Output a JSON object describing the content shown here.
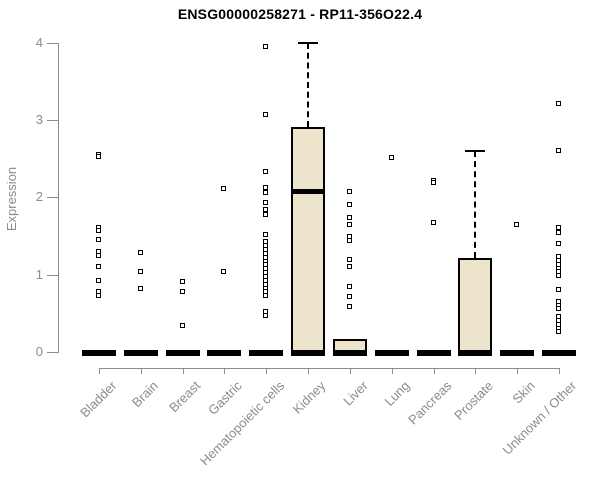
{
  "chart_data": {
    "type": "boxplot",
    "title": "ENSG00000258271 - RP11-356O22.4",
    "ylabel": "Expression",
    "xlabel": "",
    "ylim": [
      0,
      4
    ],
    "yticks": [
      0,
      1,
      2,
      3,
      4
    ],
    "grid": "off",
    "legend": "none",
    "box_fill_color": "#ece5cb",
    "box_border_color": "#000000",
    "axis_color": "#8c8c8c",
    "outlier_marker": "open-square",
    "categories": [
      "Bladder",
      "Brain",
      "Breast",
      "Gastric",
      "Hematopoietic cells",
      "Kidney",
      "Liver",
      "Lung",
      "Pancreas",
      "Prostate",
      "Skin",
      "Unknown / Other"
    ],
    "groups": [
      {
        "name": "Bladder",
        "box": {
          "q1": 0,
          "median": 0,
          "q3": 0,
          "whisker_low": 0,
          "whisker_high": 0
        },
        "points": [
          2.55,
          2.52,
          1.6,
          1.56,
          1.45,
          1.3,
          1.24,
          1.1,
          0.92,
          0.78,
          0.72
        ]
      },
      {
        "name": "Brain",
        "box": {
          "q1": 0,
          "median": 0,
          "q3": 0,
          "whisker_low": 0,
          "whisker_high": 0
        },
        "points": [
          1.28,
          1.04,
          0.81
        ]
      },
      {
        "name": "Breast",
        "box": {
          "q1": 0,
          "median": 0,
          "q3": 0,
          "whisker_low": 0,
          "whisker_high": 0
        },
        "points": [
          0.9,
          0.78,
          0.33
        ]
      },
      {
        "name": "Gastric",
        "box": {
          "q1": 0,
          "median": 0,
          "q3": 0,
          "whisker_low": 0,
          "whisker_high": 0
        },
        "points": [
          2.11,
          1.03
        ]
      },
      {
        "name": "Hematopoietic cells",
        "box": {
          "q1": 0,
          "median": 0,
          "q3": 0,
          "whisker_low": 0,
          "whisker_high": 0
        },
        "points": [
          3.95,
          3.06,
          2.33,
          2.12,
          2.06,
          1.93,
          1.84,
          1.77,
          1.51,
          1.42,
          1.37,
          1.32,
          1.27,
          1.22,
          1.17,
          1.12,
          1.07,
          1.02,
          0.97,
          0.92,
          0.87,
          0.82,
          0.77,
          0.72,
          0.52,
          0.46
        ]
      },
      {
        "name": "Kidney",
        "box": {
          "q1": 0,
          "median": 2.07,
          "q3": 2.91,
          "whisker_low": 0,
          "whisker_high": 4.0
        },
        "points": []
      },
      {
        "name": "Liver",
        "box": {
          "q1": 0,
          "median": 0,
          "q3": 0.17,
          "whisker_low": 0,
          "whisker_high": 0.17
        },
        "points": [
          2.07,
          1.9,
          1.73,
          1.64,
          1.49,
          1.43,
          1.19,
          1.1,
          0.84,
          0.71,
          0.58
        ]
      },
      {
        "name": "Lung",
        "box": {
          "q1": 0,
          "median": 0,
          "q3": 0,
          "whisker_low": 0,
          "whisker_high": 0
        },
        "points": [
          2.51
        ]
      },
      {
        "name": "Pancreas",
        "box": {
          "q1": 0,
          "median": 0,
          "q3": 0,
          "whisker_low": 0,
          "whisker_high": 0
        },
        "points": [
          2.21,
          2.18,
          1.67
        ]
      },
      {
        "name": "Prostate",
        "box": {
          "q1": 0,
          "median": 0,
          "q3": 1.21,
          "whisker_low": 0,
          "whisker_high": 2.6
        },
        "points": []
      },
      {
        "name": "Skin",
        "box": {
          "q1": 0,
          "median": 0,
          "q3": 0,
          "whisker_low": 0,
          "whisker_high": 0
        },
        "points": [
          1.64
        ]
      },
      {
        "name": "Unknown / Other",
        "box": {
          "q1": 0,
          "median": 0,
          "q3": 0,
          "whisker_low": 0,
          "whisker_high": 0
        },
        "points": [
          3.21,
          2.6,
          1.6,
          1.54,
          1.4,
          1.23,
          1.18,
          1.13,
          1.08,
          1.03,
          0.98,
          0.8,
          0.65,
          0.6,
          0.55,
          0.45,
          0.4,
          0.35,
          0.3,
          0.26
        ]
      }
    ]
  }
}
